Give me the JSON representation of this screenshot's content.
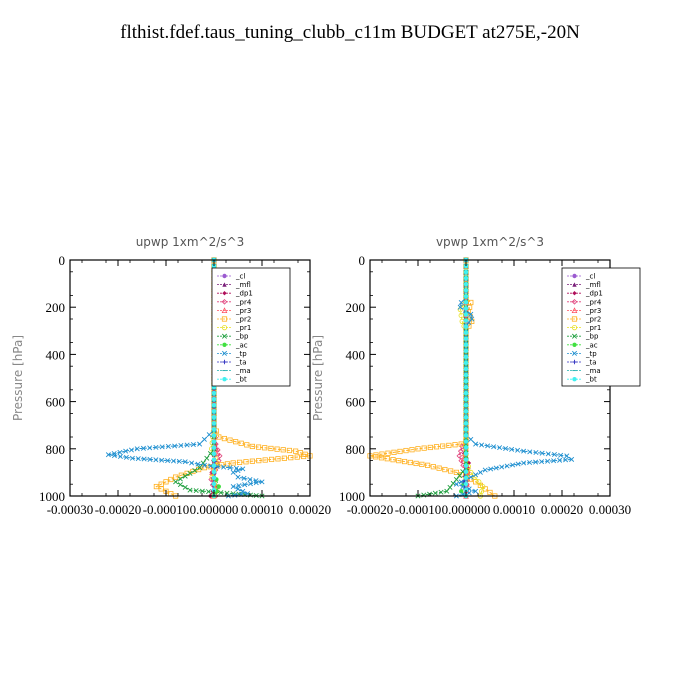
{
  "title": "flthist.fdef.taus_tuning_clubb_c11m  BUDGET at275E,-20N",
  "legend": [
    {
      "name": "_cl",
      "color": "#9b59d0",
      "marker": "circle"
    },
    {
      "name": "_mfl",
      "color": "#7a1f7a",
      "marker": "triangle"
    },
    {
      "name": "_dp1",
      "color": "#b0105a",
      "marker": "diamond"
    },
    {
      "name": "_pr4",
      "color": "#e0407a",
      "marker": "diamond-open"
    },
    {
      "name": "_pr3",
      "color": "#ff5060",
      "marker": "triangle-open"
    },
    {
      "name": "_pr2",
      "color": "#ffb020",
      "marker": "square-open"
    },
    {
      "name": "_pr1",
      "color": "#e8e020",
      "marker": "circle-open"
    },
    {
      "name": "_bp",
      "color": "#20a040",
      "marker": "x"
    },
    {
      "name": "_ac",
      "color": "#40e040",
      "marker": "circle"
    },
    {
      "name": "_tp",
      "color": "#2090d0",
      "marker": "x"
    },
    {
      "name": "_ta",
      "color": "#3030c0",
      "marker": "plus"
    },
    {
      "name": "_ma",
      "color": "#20b0b0",
      "marker": "dash"
    },
    {
      "name": "_bt",
      "color": "#40f0f0",
      "marker": "circle"
    }
  ],
  "chart_data": [
    {
      "type": "line",
      "title": "upwp   1xm^2/s^3",
      "ylabel": "Pressure [hPa]",
      "xlim": [
        -0.0003,
        0.0002
      ],
      "ylim": [
        1000,
        0
      ],
      "xticks": [
        "-0.00030",
        "-0.00020",
        "-0.00010",
        "0.000000",
        "0.00010",
        "0.00020"
      ],
      "yticks": [
        "0",
        "200",
        "400",
        "600",
        "800",
        "1000"
      ],
      "legend_position": "top-right",
      "series": [
        {
          "name": "_cl",
          "color": "#9b59d0",
          "points": [
            [
              0,
              0
            ],
            [
              0,
              600
            ],
            [
              0,
              800
            ],
            [
              0,
              1000
            ]
          ]
        },
        {
          "name": "_mfl",
          "color": "#7a1f7a",
          "points": [
            [
              0,
              0
            ],
            [
              0,
              600
            ],
            [
              0,
              800
            ],
            [
              0,
              1000
            ]
          ]
        },
        {
          "name": "_dp1",
          "color": "#b0105a",
          "points": [
            [
              0,
              0
            ],
            [
              0,
              700
            ],
            [
              2e-06,
              800
            ],
            [
              -5e-06,
              900
            ],
            [
              3e-06,
              960
            ],
            [
              -8e-06,
              1000
            ]
          ]
        },
        {
          "name": "_pr4",
          "color": "#e0407a",
          "points": [
            [
              0,
              0
            ],
            [
              0,
              700
            ],
            [
              4e-06,
              780
            ],
            [
              1.2e-05,
              830
            ],
            [
              8e-06,
              870
            ],
            [
              -6e-06,
              930
            ],
            [
              4e-06,
              1000
            ]
          ]
        },
        {
          "name": "_pr3",
          "color": "#ff5060",
          "points": [
            [
              0,
              0
            ],
            [
              0,
              750
            ],
            [
              5e-06,
              820
            ],
            [
              -4e-06,
              900
            ],
            [
              6e-06,
              960
            ],
            [
              -2e-06,
              1000
            ]
          ]
        },
        {
          "name": "_pr2",
          "color": "#ffb020",
          "points": [
            [
              0,
              0
            ],
            [
              0,
              200
            ],
            [
              0,
              700
            ],
            [
              1e-05,
              750
            ],
            [
              8e-05,
              790
            ],
            [
              0.00017,
              810
            ],
            [
              0.0002,
              830
            ],
            [
              0.00012,
              845
            ],
            [
              4e-05,
              860
            ],
            [
              -2e-05,
              880
            ],
            [
              -8e-05,
              920
            ],
            [
              -0.00012,
              960
            ],
            [
              -8e-05,
              1000
            ]
          ]
        },
        {
          "name": "_pr1",
          "color": "#e8e020",
          "points": [
            [
              0,
              0
            ],
            [
              0,
              700
            ],
            [
              -5e-06,
              800
            ],
            [
              6e-06,
              860
            ],
            [
              -4e-06,
              920
            ],
            [
              5e-06,
              980
            ],
            [
              0,
              1000
            ]
          ]
        },
        {
          "name": "_bp",
          "color": "#20a040",
          "points": [
            [
              0,
              0
            ],
            [
              0,
              800
            ],
            [
              -3e-05,
              880
            ],
            [
              -8e-05,
              940
            ],
            [
              -5e-05,
              975
            ],
            [
              4e-05,
              990
            ],
            [
              0.0001,
              1000
            ]
          ]
        },
        {
          "name": "_ac",
          "color": "#40e040",
          "points": [
            [
              0,
              0
            ],
            [
              0,
              900
            ],
            [
              1e-05,
              960
            ],
            [
              0,
              1000
            ]
          ]
        },
        {
          "name": "_tp",
          "color": "#2090d0",
          "points": [
            [
              0,
              0
            ],
            [
              0,
              720
            ],
            [
              -3e-05,
              780
            ],
            [
              -0.00016,
              800
            ],
            [
              -0.00022,
              825
            ],
            [
              -0.00017,
              840
            ],
            [
              -6e-05,
              855
            ],
            [
              -2e-05,
              870
            ],
            [
              6e-05,
              885
            ],
            [
              4e-05,
              900
            ],
            [
              5e-05,
              920
            ],
            [
              0.0001,
              940
            ],
            [
              4e-05,
              960
            ],
            [
              7e-05,
              990
            ],
            [
              3e-05,
              1000
            ]
          ]
        },
        {
          "name": "_ta",
          "color": "#3030c0",
          "points": [
            [
              0,
              0
            ],
            [
              0,
              800
            ],
            [
              2e-06,
              880
            ],
            [
              -2e-06,
              950
            ],
            [
              0,
              1000
            ]
          ]
        },
        {
          "name": "_ma",
          "color": "#20b0b0",
          "points": [
            [
              0,
              0
            ],
            [
              0,
              1000
            ]
          ]
        },
        {
          "name": "_bt",
          "color": "#40f0f0",
          "points": [
            [
              0,
              0
            ],
            [
              0,
              1000
            ]
          ]
        }
      ]
    },
    {
      "type": "line",
      "title": "vpwp   1xm^2/s^3",
      "ylabel": "Pressure [hPa]",
      "xlim": [
        -0.0002,
        0.0003
      ],
      "ylim": [
        1000,
        0
      ],
      "xticks": [
        "-0.00020",
        "-0.00010",
        "0.000000",
        "0.00010",
        "0.00020",
        "0.00030"
      ],
      "yticks": [
        "0",
        "200",
        "400",
        "600",
        "800",
        "1000"
      ],
      "legend_position": "top-right",
      "series": [
        {
          "name": "_cl",
          "color": "#9b59d0",
          "points": [
            [
              0,
              0
            ],
            [
              0,
              600
            ],
            [
              0,
              1000
            ]
          ]
        },
        {
          "name": "_mfl",
          "color": "#7a1f7a",
          "points": [
            [
              0,
              0
            ],
            [
              0,
              600
            ],
            [
              0,
              1000
            ]
          ]
        },
        {
          "name": "_dp1",
          "color": "#b0105a",
          "points": [
            [
              0,
              0
            ],
            [
              0,
              780
            ],
            [
              -4e-06,
              820
            ],
            [
              6e-06,
              860
            ],
            [
              0,
              1000
            ]
          ]
        },
        {
          "name": "_pr4",
          "color": "#e0407a",
          "points": [
            [
              0,
              0
            ],
            [
              0,
              760
            ],
            [
              -8e-06,
              790
            ],
            [
              -1.4e-05,
              830
            ],
            [
              -6e-06,
              870
            ],
            [
              4e-06,
              900
            ],
            [
              0,
              1000
            ]
          ]
        },
        {
          "name": "_pr3",
          "color": "#ff5060",
          "points": [
            [
              0,
              0
            ],
            [
              0,
              800
            ],
            [
              -5e-06,
              840
            ],
            [
              4e-06,
              900
            ],
            [
              0,
              1000
            ]
          ]
        },
        {
          "name": "_pr2",
          "color": "#ffb020",
          "points": [
            [
              0,
              0
            ],
            [
              0,
              160
            ],
            [
              1e-05,
              180
            ],
            [
              5e-06,
              220
            ],
            [
              1.2e-05,
              260
            ],
            [
              0,
              300
            ],
            [
              0,
              760
            ],
            [
              -1e-05,
              780
            ],
            [
              -0.0001,
              800
            ],
            [
              -0.0002,
              830
            ],
            [
              -0.00014,
              850
            ],
            [
              -8e-05,
              870
            ],
            [
              -2e-05,
              900
            ],
            [
              2e-05,
              940
            ],
            [
              4e-05,
              970
            ],
            [
              6e-05,
              1000
            ]
          ]
        },
        {
          "name": "_pr1",
          "color": "#e8e020",
          "points": [
            [
              0,
              0
            ],
            [
              0,
              170
            ],
            [
              -1.2e-05,
              210
            ],
            [
              -8e-06,
              260
            ],
            [
              0,
              300
            ],
            [
              0,
              850
            ],
            [
              1e-05,
              900
            ],
            [
              3.5e-05,
              960
            ],
            [
              3e-05,
              1000
            ]
          ]
        },
        {
          "name": "_bp",
          "color": "#20a040",
          "points": [
            [
              0,
              0
            ],
            [
              0,
              880
            ],
            [
              -2e-05,
              930
            ],
            [
              -4e-05,
              980
            ],
            [
              -0.0001,
              1000
            ]
          ]
        },
        {
          "name": "_ac",
          "color": "#40e040",
          "points": [
            [
              0,
              0
            ],
            [
              0,
              920
            ],
            [
              -1e-05,
              980
            ],
            [
              0,
              1000
            ]
          ]
        },
        {
          "name": "_tp",
          "color": "#2090d0",
          "points": [
            [
              0,
              0
            ],
            [
              0,
              160
            ],
            [
              -1e-05,
              180
            ],
            [
              -1.2e-05,
              200
            ],
            [
              1e-05,
              230
            ],
            [
              1.2e-05,
              250
            ],
            [
              0,
              280
            ],
            [
              0,
              740
            ],
            [
              2e-05,
              780
            ],
            [
              0.00012,
              810
            ],
            [
              0.00021,
              830
            ],
            [
              0.00022,
              845
            ],
            [
              0.00012,
              860
            ],
            [
              4e-05,
              890
            ],
            [
              1e-05,
              920
            ],
            [
              -2e-05,
              950
            ],
            [
              2e-05,
              980
            ],
            [
              -2e-05,
              1000
            ]
          ]
        },
        {
          "name": "_ta",
          "color": "#3030c0",
          "points": [
            [
              0,
              0
            ],
            [
              0,
              870
            ],
            [
              -4e-06,
              940
            ],
            [
              0,
              1000
            ]
          ]
        },
        {
          "name": "_ma",
          "color": "#20b0b0",
          "points": [
            [
              0,
              0
            ],
            [
              0,
              1000
            ]
          ]
        },
        {
          "name": "_bt",
          "color": "#40f0f0",
          "points": [
            [
              0,
              0
            ],
            [
              0,
              1000
            ]
          ]
        }
      ]
    }
  ]
}
